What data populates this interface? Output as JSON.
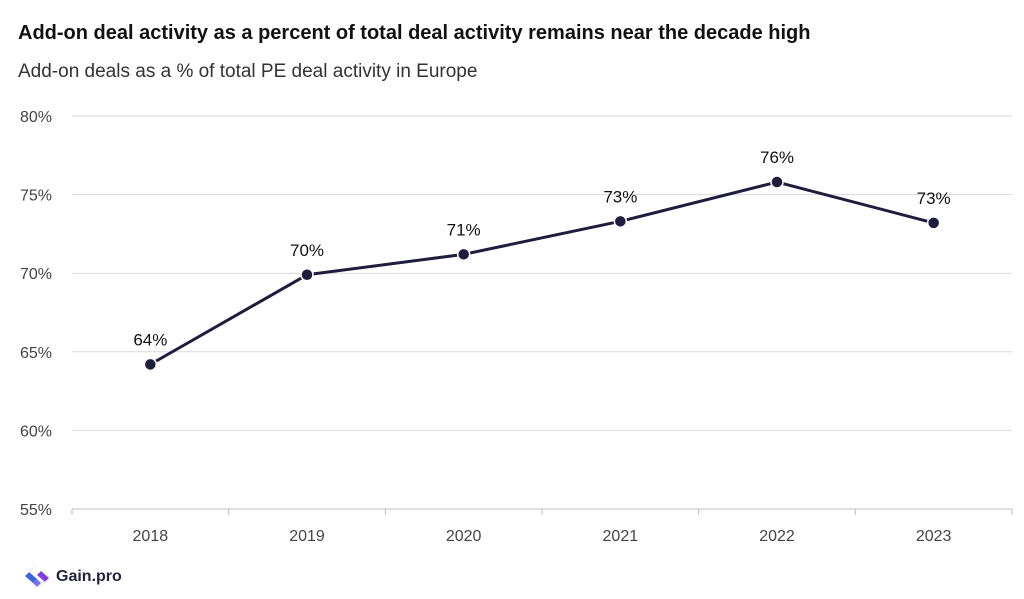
{
  "title": "Add-on deal activity as a percent of total deal activity remains near the decade high",
  "subtitle": "Add-on deals as a % of total PE deal activity in Europe",
  "brand": "Gain.pro",
  "colors": {
    "line": "#1f1d3d",
    "grid": "#d9d9d9",
    "brand": "#3b63e0"
  },
  "chart_data": {
    "type": "line",
    "categories": [
      "2018",
      "2019",
      "2020",
      "2021",
      "2022",
      "2023"
    ],
    "series": [
      {
        "values": [
          64.2,
          69.9,
          71.2,
          73.3,
          75.8,
          73.2
        ],
        "labels": [
          "64%",
          "70%",
          "71%",
          "73%",
          "76%",
          "73%"
        ]
      }
    ],
    "y_ticks": [
      "55%",
      "60%",
      "65%",
      "70%",
      "75%",
      "80%"
    ],
    "ylim": [
      55,
      80
    ],
    "grid": true
  }
}
